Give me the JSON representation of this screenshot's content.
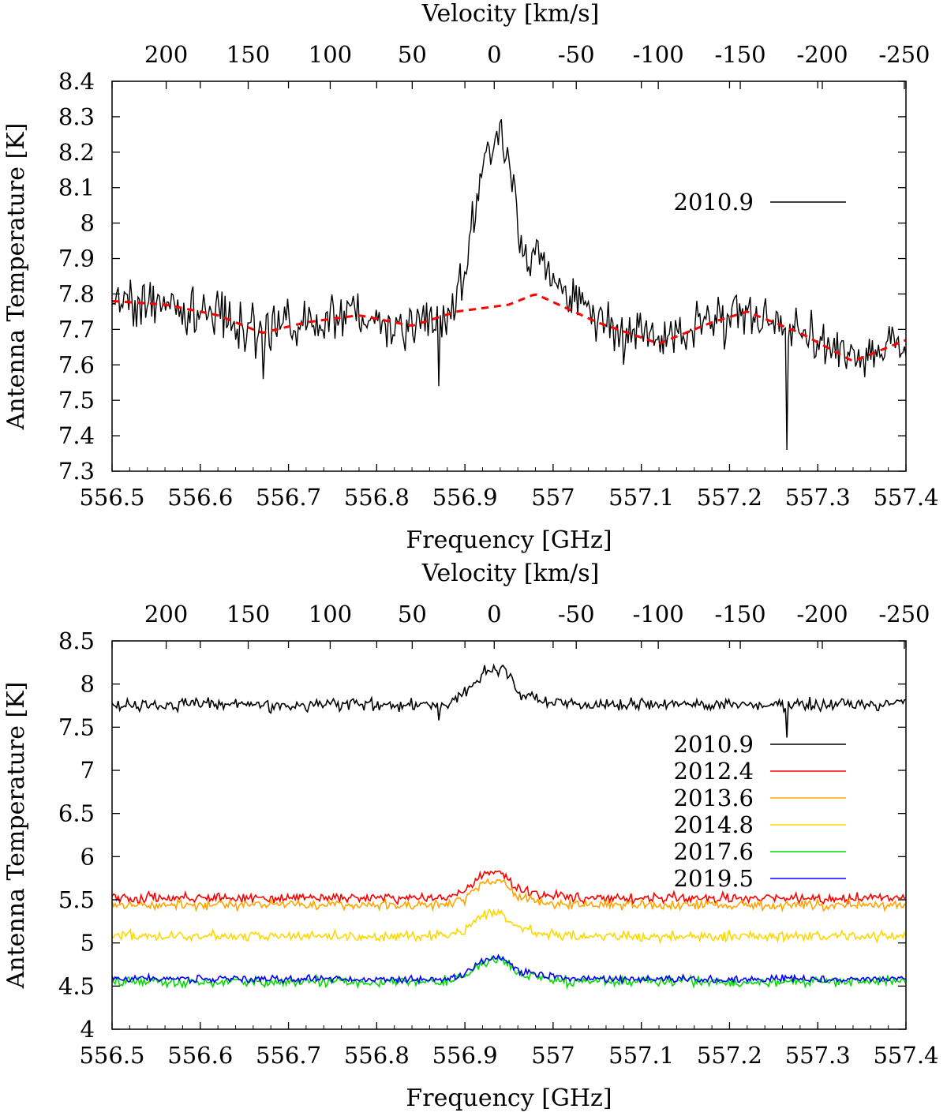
{
  "chart_data": [
    {
      "type": "line",
      "title": "",
      "xlabel": "Frequency [GHz]",
      "ylabel": "Antenna Temperature [K]",
      "x2label": "Velocity [km/s]",
      "xlim": [
        556.5,
        557.4
      ],
      "ylim": [
        7.3,
        8.4
      ],
      "x2lim": [
        233,
        -251
      ],
      "x_ticks": [
        "556.5",
        "556.6",
        "556.7",
        "556.8",
        "556.9",
        "557",
        "557.1",
        "557.2",
        "557.3",
        "557.4"
      ],
      "y_ticks": [
        "7.3",
        "7.4",
        "7.5",
        "7.6",
        "7.7",
        "7.8",
        "7.9",
        "8",
        "8.1",
        "8.2",
        "8.3",
        "8.4"
      ],
      "x2_ticks": [
        "200",
        "150",
        "100",
        "50",
        "0",
        "-50",
        "-100",
        "-150",
        "-200",
        "-250"
      ],
      "legend_position": "upper-right",
      "series": [
        {
          "name": "2010.9",
          "color": "#000000",
          "style": "noisy-solid",
          "noise": 0.05,
          "baseline": [
            [
              556.5,
              7.78
            ],
            [
              556.56,
              7.77
            ],
            [
              556.62,
              7.74
            ],
            [
              556.67,
              7.69
            ],
            [
              556.72,
              7.72
            ],
            [
              556.78,
              7.74
            ],
            [
              556.84,
              7.71
            ],
            [
              556.89,
              7.75
            ],
            [
              556.95,
              7.77
            ],
            [
              556.98,
              7.8
            ],
            [
              557.05,
              7.72
            ],
            [
              557.12,
              7.66
            ],
            [
              557.18,
              7.72
            ],
            [
              557.22,
              7.75
            ],
            [
              557.28,
              7.69
            ],
            [
              557.34,
              7.61
            ],
            [
              557.4,
              7.67
            ]
          ],
          "peak": [
            [
              556.88,
              0
            ],
            [
              556.895,
              0.08
            ],
            [
              556.91,
              0.25
            ],
            [
              556.925,
              0.45
            ],
            [
              556.945,
              0.46
            ],
            [
              556.955,
              0.35
            ],
            [
              556.962,
              0.15
            ],
            [
              556.985,
              0.1
            ],
            [
              557.01,
              0.06
            ],
            [
              557.04,
              0.03
            ],
            [
              557.07,
              0
            ]
          ],
          "spikes": [
            [
              557.265,
              7.36
            ],
            [
              556.87,
              7.54
            ],
            [
              556.672,
              7.56
            ]
          ]
        },
        {
          "name": "model",
          "color": "#ff0000",
          "style": "dashed",
          "in_legend": false,
          "baseline": [
            [
              556.5,
              7.78
            ],
            [
              556.56,
              7.77
            ],
            [
              556.62,
              7.74
            ],
            [
              556.67,
              7.69
            ],
            [
              556.72,
              7.72
            ],
            [
              556.78,
              7.74
            ],
            [
              556.84,
              7.71
            ],
            [
              556.89,
              7.75
            ],
            [
              556.95,
              7.77
            ],
            [
              556.98,
              7.8
            ],
            [
              557.05,
              7.72
            ],
            [
              557.12,
              7.66
            ],
            [
              557.18,
              7.72
            ],
            [
              557.22,
              7.75
            ],
            [
              557.28,
              7.69
            ],
            [
              557.34,
              7.61
            ],
            [
              557.4,
              7.67
            ]
          ]
        }
      ]
    },
    {
      "type": "line",
      "title": "",
      "xlabel": "Frequency [GHz]",
      "ylabel": "Antenna Temperature [K]",
      "x2label": "Velocity [km/s]",
      "xlim": [
        556.5,
        557.4
      ],
      "ylim": [
        4,
        8.5
      ],
      "x2lim": [
        233,
        -251
      ],
      "x_ticks": [
        "556.5",
        "556.6",
        "556.7",
        "556.8",
        "556.9",
        "557",
        "557.1",
        "557.2",
        "557.3",
        "557.4"
      ],
      "y_ticks": [
        "4",
        "4.5",
        "5",
        "5.5",
        "6",
        "6.5",
        "7",
        "7.5",
        "8",
        "8.5"
      ],
      "x2_ticks": [
        "200",
        "150",
        "100",
        "50",
        "0",
        "-50",
        "-100",
        "-150",
        "-200",
        "-250"
      ],
      "legend_position": "right",
      "series": [
        {
          "name": "2010.9",
          "color": "#000000",
          "style": "noisy-solid",
          "noise": 0.05,
          "baseline": [
            [
              556.5,
              7.76
            ],
            [
              557.4,
              7.76
            ]
          ],
          "peak": [
            [
              556.88,
              0
            ],
            [
              556.9,
              0.15
            ],
            [
              556.92,
              0.38
            ],
            [
              556.945,
              0.42
            ],
            [
              556.96,
              0.15
            ],
            [
              556.99,
              0.05
            ],
            [
              557.02,
              0
            ]
          ],
          "spikes": [
            [
              557.265,
              7.38
            ],
            [
              556.87,
              7.58
            ]
          ]
        },
        {
          "name": "2012.4",
          "color": "#ff0000",
          "style": "noisy-solid",
          "noise": 0.04,
          "baseline": [
            [
              556.5,
              5.52
            ],
            [
              557.4,
              5.52
            ]
          ],
          "peak": [
            [
              556.88,
              0
            ],
            [
              556.9,
              0.08
            ],
            [
              556.92,
              0.28
            ],
            [
              556.94,
              0.31
            ],
            [
              556.96,
              0.1
            ],
            [
              556.99,
              0.03
            ],
            [
              557.02,
              0
            ]
          ]
        },
        {
          "name": "2013.6",
          "color": "#ffa500",
          "style": "noisy-solid",
          "noise": 0.04,
          "baseline": [
            [
              556.5,
              5.44
            ],
            [
              557.4,
              5.44
            ]
          ],
          "peak": [
            [
              556.88,
              0
            ],
            [
              556.9,
              0.08
            ],
            [
              556.92,
              0.25
            ],
            [
              556.94,
              0.28
            ],
            [
              556.96,
              0.1
            ],
            [
              556.99,
              0.03
            ],
            [
              557.02,
              0
            ]
          ]
        },
        {
          "name": "2014.8",
          "color": "#ffd700",
          "style": "noisy-solid",
          "noise": 0.04,
          "baseline": [
            [
              556.5,
              5.08
            ],
            [
              557.4,
              5.08
            ]
          ],
          "peak": [
            [
              556.88,
              0
            ],
            [
              556.9,
              0.08
            ],
            [
              556.92,
              0.25
            ],
            [
              556.94,
              0.27
            ],
            [
              556.96,
              0.1
            ],
            [
              556.99,
              0.03
            ],
            [
              557.02,
              0
            ]
          ]
        },
        {
          "name": "2017.6",
          "color": "#00dd00",
          "style": "noisy-solid",
          "noise": 0.04,
          "baseline": [
            [
              556.5,
              4.55
            ],
            [
              557.4,
              4.55
            ]
          ],
          "peak": [
            [
              556.88,
              0
            ],
            [
              556.9,
              0.06
            ],
            [
              556.92,
              0.22
            ],
            [
              556.94,
              0.27
            ],
            [
              556.96,
              0.1
            ],
            [
              556.99,
              0.04
            ],
            [
              557.02,
              0
            ]
          ]
        },
        {
          "name": "2019.5",
          "color": "#0000ff",
          "style": "noisy-solid",
          "noise": 0.03,
          "baseline": [
            [
              556.5,
              4.58
            ],
            [
              557.4,
              4.58
            ]
          ],
          "peak": [
            [
              556.88,
              0
            ],
            [
              556.9,
              0.06
            ],
            [
              556.92,
              0.22
            ],
            [
              556.94,
              0.26
            ],
            [
              556.96,
              0.1
            ],
            [
              556.99,
              0.04
            ],
            [
              557.02,
              0
            ]
          ]
        }
      ]
    }
  ]
}
